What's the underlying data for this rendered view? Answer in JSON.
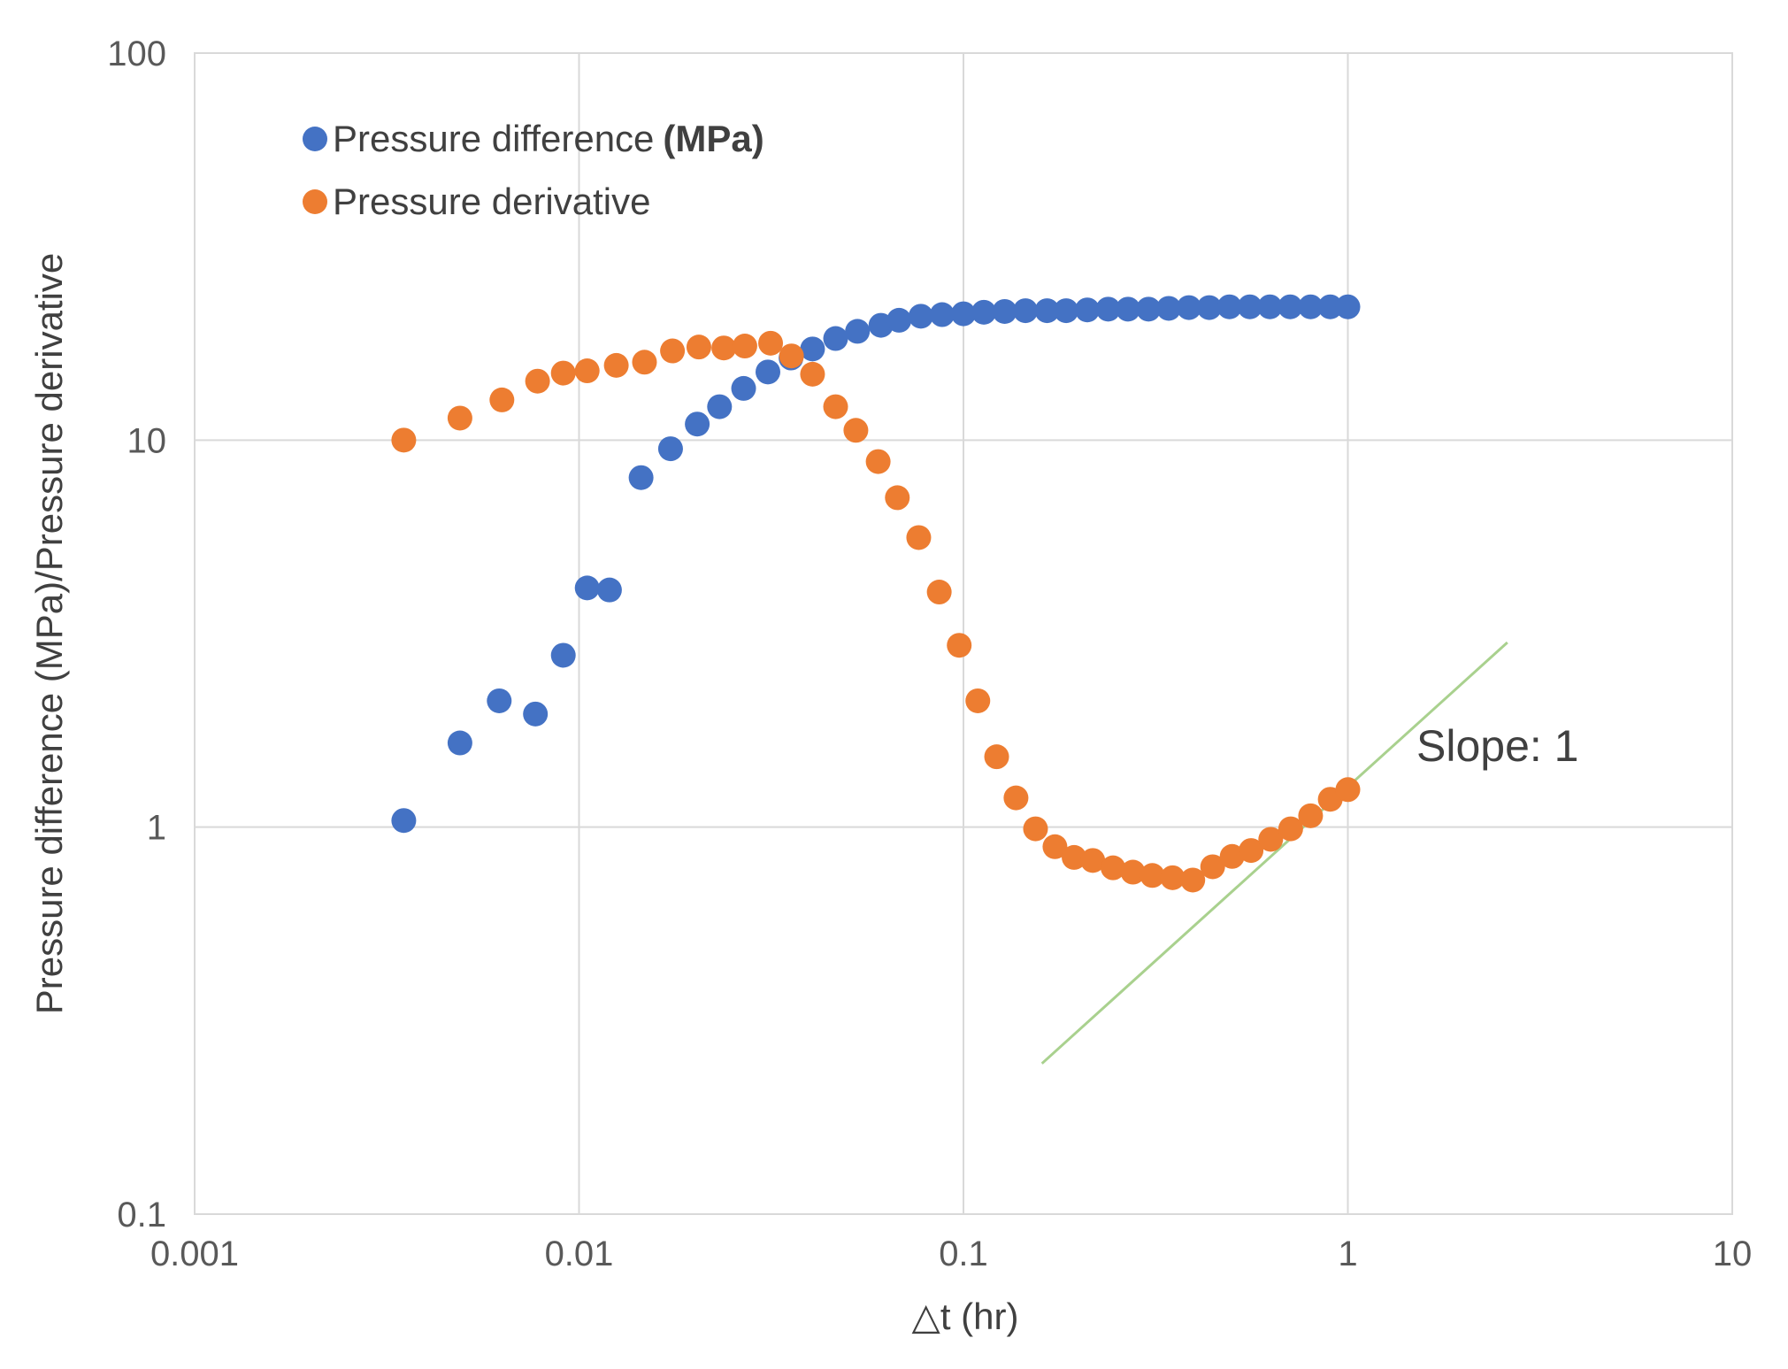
{
  "chart_data": {
    "type": "scatter",
    "xscale": "log",
    "yscale": "log",
    "xlabel": "△t (hr)",
    "ylabel": "Pressure difference (MPa)/Pressure derivative",
    "xlim": [
      0.001,
      10
    ],
    "ylim": [
      0.1,
      100
    ],
    "x_ticks": [
      0.001,
      0.01,
      0.1,
      1,
      10
    ],
    "x_tick_labels": [
      "0.001",
      "0.01",
      "0.1",
      "1",
      "10"
    ],
    "y_ticks": [
      0.1,
      1,
      10,
      100
    ],
    "y_tick_labels": [
      "0.1",
      "1",
      "10",
      "100"
    ],
    "grid": true,
    "legend_position": "top-left",
    "series": [
      {
        "name": "Pressure difference",
        "name_unit": "(MPa)",
        "color": "#4472C4",
        "points": [
          [
            0.0035,
            1.04
          ],
          [
            0.0049,
            1.65
          ],
          [
            0.0062,
            2.12
          ],
          [
            0.0077,
            1.96
          ],
          [
            0.0091,
            2.78
          ],
          [
            0.0105,
            4.15
          ],
          [
            0.012,
            4.1
          ],
          [
            0.0145,
            8.0
          ],
          [
            0.0173,
            9.5
          ],
          [
            0.0203,
            11.0
          ],
          [
            0.0232,
            12.2
          ],
          [
            0.0268,
            13.6
          ],
          [
            0.031,
            15.0
          ],
          [
            0.0356,
            16.3
          ],
          [
            0.0405,
            17.2
          ],
          [
            0.0465,
            18.3
          ],
          [
            0.053,
            19.1
          ],
          [
            0.061,
            19.8
          ],
          [
            0.068,
            20.4
          ],
          [
            0.0775,
            20.9
          ],
          [
            0.088,
            21.1
          ],
          [
            0.1,
            21.2
          ],
          [
            0.113,
            21.4
          ],
          [
            0.128,
            21.5
          ],
          [
            0.145,
            21.6
          ],
          [
            0.165,
            21.6
          ],
          [
            0.185,
            21.6
          ],
          [
            0.21,
            21.7
          ],
          [
            0.238,
            21.8
          ],
          [
            0.268,
            21.8
          ],
          [
            0.303,
            21.8
          ],
          [
            0.342,
            21.9
          ],
          [
            0.386,
            22.0
          ],
          [
            0.436,
            22.0
          ],
          [
            0.492,
            22.1
          ],
          [
            0.556,
            22.1
          ],
          [
            0.627,
            22.1
          ],
          [
            0.708,
            22.1
          ],
          [
            0.8,
            22.1
          ],
          [
            0.9,
            22.1
          ],
          [
            1.0,
            22.1
          ]
        ]
      },
      {
        "name": "Pressure derivative",
        "color": "#ED7D31",
        "points": [
          [
            0.0035,
            10.0
          ],
          [
            0.0049,
            11.4
          ],
          [
            0.0063,
            12.7
          ],
          [
            0.0078,
            14.2
          ],
          [
            0.0091,
            14.9
          ],
          [
            0.0105,
            15.1
          ],
          [
            0.0125,
            15.6
          ],
          [
            0.0148,
            15.9
          ],
          [
            0.0175,
            17.0
          ],
          [
            0.0205,
            17.4
          ],
          [
            0.0238,
            17.3
          ],
          [
            0.027,
            17.5
          ],
          [
            0.0315,
            17.8
          ],
          [
            0.0357,
            16.5
          ],
          [
            0.0405,
            14.8
          ],
          [
            0.0465,
            12.2
          ],
          [
            0.0525,
            10.6
          ],
          [
            0.06,
            8.8
          ],
          [
            0.0673,
            7.1
          ],
          [
            0.0765,
            5.6
          ],
          [
            0.0865,
            4.05
          ],
          [
            0.0975,
            2.95
          ],
          [
            0.109,
            2.12
          ],
          [
            0.122,
            1.52
          ],
          [
            0.137,
            1.19
          ],
          [
            0.154,
            0.99
          ],
          [
            0.173,
            0.89
          ],
          [
            0.194,
            0.835
          ],
          [
            0.217,
            0.82
          ],
          [
            0.245,
            0.785
          ],
          [
            0.276,
            0.765
          ],
          [
            0.31,
            0.75
          ],
          [
            0.35,
            0.74
          ],
          [
            0.395,
            0.73
          ],
          [
            0.445,
            0.79
          ],
          [
            0.5,
            0.84
          ],
          [
            0.56,
            0.87
          ],
          [
            0.63,
            0.93
          ],
          [
            0.71,
            0.99
          ],
          [
            0.8,
            1.07
          ],
          [
            0.9,
            1.18
          ],
          [
            1.0,
            1.25
          ]
        ]
      }
    ],
    "reference_line": {
      "label": "Slope: 1",
      "color": "#A9D18E",
      "start": [
        0.16,
        0.245
      ],
      "end": [
        2.6,
        3.0
      ]
    }
  }
}
